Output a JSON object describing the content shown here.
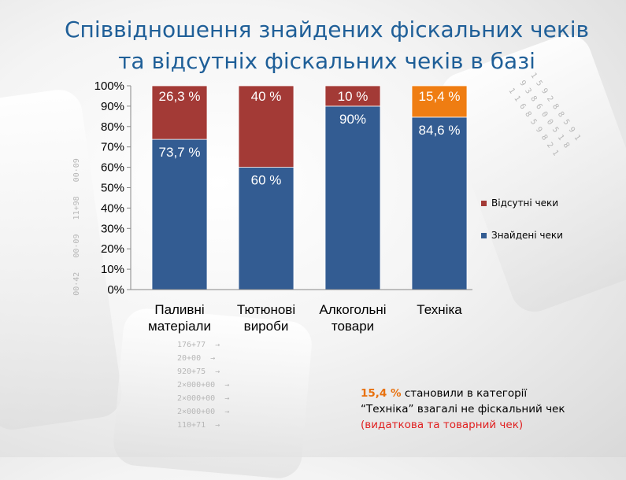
{
  "title": {
    "line1": "Співвідношення знайдених фіскальних чеків",
    "line2": "та відсутніх фіскальних чеків в базі"
  },
  "chart_data": {
    "type": "bar",
    "stacked": true,
    "percent_stacked": true,
    "title": "",
    "categories": [
      [
        "Паливні",
        "матеріали"
      ],
      [
        "Тютюнові",
        "вироби"
      ],
      [
        "Алкогольні",
        "товари"
      ],
      [
        "Техніка"
      ]
    ],
    "ylim": [
      0,
      100
    ],
    "yticks": [
      "0%",
      "10%",
      "20%",
      "30%",
      "40%",
      "50%",
      "60%",
      "70%",
      "80%",
      "90%",
      "100%"
    ],
    "grid": false,
    "legend_position": "right",
    "series": [
      {
        "name": "Знайдені чеки",
        "color": "#335c92",
        "values": [
          73.7,
          60,
          90,
          84.6
        ],
        "labels": [
          "73,7 %",
          "60 %",
          "90%",
          "84,6 %"
        ]
      },
      {
        "name": "Відсутні чеки",
        "color": "#a33a36",
        "point_colors": [
          "#a33a36",
          "#a33a36",
          "#a33a36",
          "#ef7d12"
        ],
        "values": [
          26.3,
          40,
          10,
          15.4
        ],
        "labels": [
          "26,3 %",
          "40 %",
          "10 %",
          "15,4 %"
        ]
      }
    ]
  },
  "note": {
    "highlight": "15,4 %",
    "text1": " становили в категорії",
    "text2": "“Техніка” взагалі  не фіскальний чек",
    "text3": "(видаткова та товарний чек)"
  },
  "colors": {
    "title": "#1f5f98",
    "highlight": "#e8710e",
    "red_note": "#e02020"
  }
}
